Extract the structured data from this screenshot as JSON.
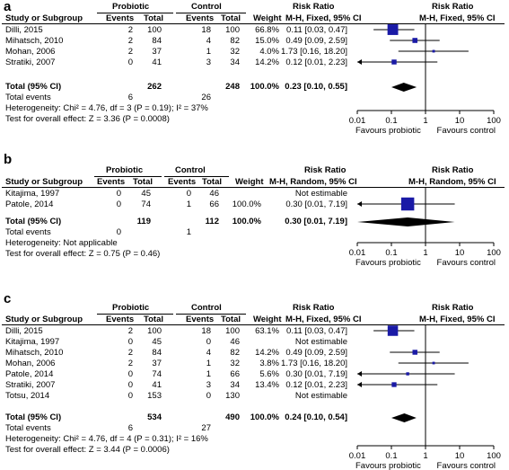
{
  "colors": {
    "marker": "#1a1aa6",
    "diamond": "#000000",
    "line": "#000000"
  },
  "headers": {
    "study": "Study or Subgroup",
    "probiotic": "Probiotic",
    "control": "Control",
    "events": "Events",
    "total": "Total",
    "weight": "Weight",
    "risk_ratio": "Risk Ratio"
  },
  "panels": [
    {
      "letter": "a",
      "method": "M-H, Fixed, 95% CI",
      "rows": [
        {
          "study": "Dilli, 2015",
          "e1": "2",
          "t1": "100",
          "e2": "18",
          "t2": "100",
          "weight": "66.8%",
          "rr": "0.11 [0.03, 0.47]",
          "est": 0.11,
          "lo": 0.03,
          "hi": 0.47,
          "w": 66.8
        },
        {
          "study": "Mihatsch, 2010",
          "e1": "2",
          "t1": "84",
          "e2": "4",
          "t2": "82",
          "weight": "15.0%",
          "rr": "0.49 [0.09, 2.59]",
          "est": 0.49,
          "lo": 0.09,
          "hi": 2.59,
          "w": 15.0
        },
        {
          "study": "Mohan, 2006",
          "e1": "2",
          "t1": "37",
          "e2": "1",
          "t2": "32",
          "weight": "4.0%",
          "rr": "1.73 [0.16, 18.20]",
          "est": 1.73,
          "lo": 0.16,
          "hi": 18.2,
          "w": 4.0
        },
        {
          "study": "Stratiki, 2007",
          "e1": "0",
          "t1": "41",
          "e2": "3",
          "t2": "34",
          "weight": "14.2%",
          "rr": "0.12 [0.01, 2.23]",
          "est": 0.12,
          "lo": 0.01,
          "hi": 2.23,
          "w": 14.2
        }
      ],
      "total": {
        "label": "Total (95% CI)",
        "t1": "262",
        "t2": "248",
        "weight": "100.0%",
        "rr": "0.23 [0.10, 0.55]",
        "est": 0.23,
        "lo": 0.1,
        "hi": 0.55
      },
      "total_events": {
        "label": "Total events",
        "e1": "6",
        "e2": "26"
      },
      "heterogeneity": "Heterogeneity: Chi² = 4.76, df = 3 (P = 0.19); I² = 37%",
      "overall": "Test for overall effect: Z = 3.36 (P = 0.0008)",
      "axis_ticks": [
        "0.01",
        "0.1",
        "1",
        "10",
        "100"
      ],
      "favours_left": "Favours probiotic",
      "favours_right": "Favours control"
    },
    {
      "letter": "b",
      "method": "M-H, Random, 95% CI",
      "rows": [
        {
          "study": "Kitajima, 1997",
          "e1": "0",
          "t1": "45",
          "e2": "0",
          "t2": "46",
          "weight": "",
          "rr": "Not estimable",
          "est": null,
          "lo": null,
          "hi": null,
          "w": 0
        },
        {
          "study": "Patole, 2014",
          "e1": "0",
          "t1": "74",
          "e2": "1",
          "t2": "66",
          "weight": "100.0%",
          "rr": "0.30 [0.01, 7.19]",
          "est": 0.3,
          "lo": 0.01,
          "hi": 7.19,
          "w": 100
        }
      ],
      "total": {
        "label": "Total (95% CI)",
        "t1": "119",
        "t2": "112",
        "weight": "100.0%",
        "rr": "0.30 [0.01, 7.19]",
        "est": 0.3,
        "lo": 0.01,
        "hi": 7.19
      },
      "total_events": {
        "label": "Total events",
        "e1": "0",
        "e2": "1"
      },
      "heterogeneity": "Heterogeneity: Not applicable",
      "overall": "Test for overall effect: Z = 0.75 (P = 0.46)",
      "axis_ticks": [
        "0.01",
        "0.1",
        "1",
        "10",
        "100"
      ],
      "favours_left": "Favours probiotic",
      "favours_right": "Favours control"
    },
    {
      "letter": "c",
      "method": "M-H, Fixed, 95% CI",
      "rows": [
        {
          "study": "Dilli, 2015",
          "e1": "2",
          "t1": "100",
          "e2": "18",
          "t2": "100",
          "weight": "63.1%",
          "rr": "0.11 [0.03, 0.47]",
          "est": 0.11,
          "lo": 0.03,
          "hi": 0.47,
          "w": 63.1
        },
        {
          "study": "Kitajima, 1997",
          "e1": "0",
          "t1": "45",
          "e2": "0",
          "t2": "46",
          "weight": "",
          "rr": "Not estimable",
          "est": null,
          "lo": null,
          "hi": null,
          "w": 0
        },
        {
          "study": "Mihatsch, 2010",
          "e1": "2",
          "t1": "84",
          "e2": "4",
          "t2": "82",
          "weight": "14.2%",
          "rr": "0.49 [0.09, 2.59]",
          "est": 0.49,
          "lo": 0.09,
          "hi": 2.59,
          "w": 14.2
        },
        {
          "study": "Mohan, 2006",
          "e1": "2",
          "t1": "37",
          "e2": "1",
          "t2": "32",
          "weight": "3.8%",
          "rr": "1.73 [0.16, 18.20]",
          "est": 1.73,
          "lo": 0.16,
          "hi": 18.2,
          "w": 3.8
        },
        {
          "study": "Patole, 2014",
          "e1": "0",
          "t1": "74",
          "e2": "1",
          "t2": "66",
          "weight": "5.6%",
          "rr": "0.30 [0.01, 7.19]",
          "est": 0.3,
          "lo": 0.01,
          "hi": 7.19,
          "w": 5.6
        },
        {
          "study": "Stratiki, 2007",
          "e1": "0",
          "t1": "41",
          "e2": "3",
          "t2": "34",
          "weight": "13.4%",
          "rr": "0.12 [0.01, 2.23]",
          "est": 0.12,
          "lo": 0.01,
          "hi": 2.23,
          "w": 13.4
        },
        {
          "study": "Totsu, 2014",
          "e1": "0",
          "t1": "153",
          "e2": "0",
          "t2": "130",
          "weight": "",
          "rr": "Not estimable",
          "est": null,
          "lo": null,
          "hi": null,
          "w": 0
        }
      ],
      "total": {
        "label": "Total (95% CI)",
        "t1": "534",
        "t2": "490",
        "weight": "100.0%",
        "rr": "0.24 [0.10, 0.54]",
        "est": 0.24,
        "lo": 0.1,
        "hi": 0.54
      },
      "total_events": {
        "label": "Total events",
        "e1": "6",
        "e2": "27"
      },
      "heterogeneity": "Heterogeneity: Chi² = 4.76, df = 4 (P = 0.31); I² = 16%",
      "overall": "Test for overall effect: Z = 3.44 (P = 0.0006)",
      "axis_ticks": [
        "0.01",
        "0.1",
        "1",
        "10",
        "100"
      ],
      "favours_left": "Favours probiotic",
      "favours_right": "Favours control"
    }
  ]
}
